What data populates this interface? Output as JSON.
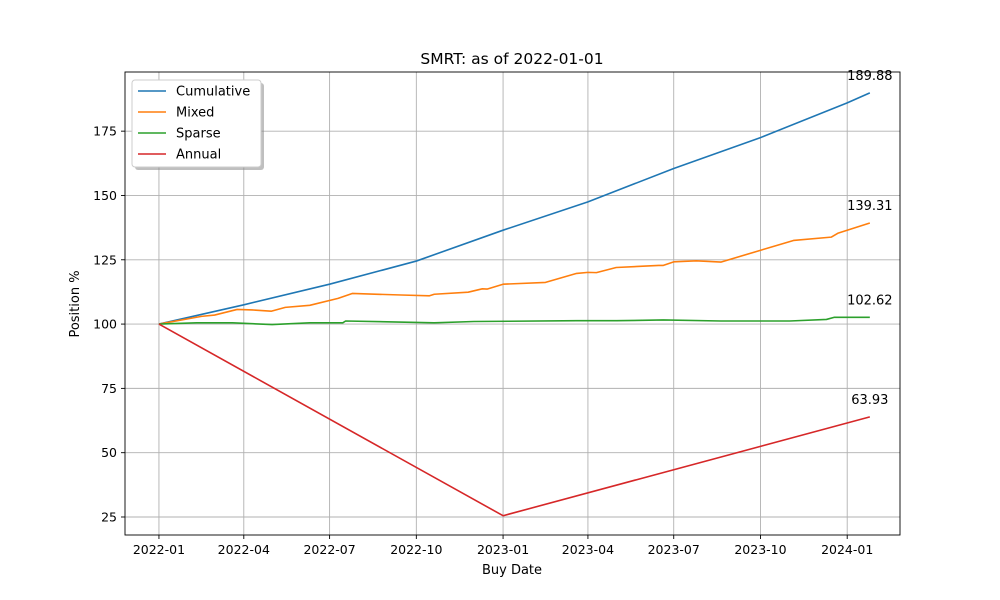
{
  "chart_data": {
    "type": "line",
    "title": "SMRT: as of 2022-01-01",
    "xlabel": "Buy Date",
    "ylabel": "Position %",
    "x_axis_type": "date",
    "xlim": [
      "2021-11-26",
      "2024-02-26"
    ],
    "ylim": [
      18,
      198
    ],
    "x_ticks": [
      "2022-01-01",
      "2022-04-01",
      "2022-07-01",
      "2022-10-01",
      "2023-01-01",
      "2023-04-01",
      "2023-07-01",
      "2023-10-01",
      "2024-01-01"
    ],
    "x_tick_labels": [
      "2022-01",
      "2022-04",
      "2022-07",
      "2022-10",
      "2023-01",
      "2023-04",
      "2023-07",
      "2023-10",
      "2024-01"
    ],
    "y_ticks": [
      25,
      50,
      75,
      100,
      125,
      150,
      175
    ],
    "grid": true,
    "legend_position": "top-left",
    "series": [
      {
        "name": "Cumulative",
        "color": "#1f77b4",
        "end_label": "189.88",
        "points": [
          [
            "2022-01-01",
            100
          ],
          [
            "2022-04-01",
            107.5
          ],
          [
            "2022-07-01",
            115.5
          ],
          [
            "2022-10-01",
            124.5
          ],
          [
            "2023-01-01",
            136.5
          ],
          [
            "2023-04-01",
            147.5
          ],
          [
            "2023-07-01",
            160.5
          ],
          [
            "2023-10-01",
            172.5
          ],
          [
            "2024-01-01",
            186
          ],
          [
            "2024-01-25",
            189.88
          ]
        ]
      },
      {
        "name": "Mixed",
        "color": "#ff7f0e",
        "end_label": "139.31",
        "points": [
          [
            "2022-01-01",
            100
          ],
          [
            "2022-02-15",
            103
          ],
          [
            "2022-03-01",
            103.5
          ],
          [
            "2022-03-25",
            105.7
          ],
          [
            "2022-04-10",
            105.5
          ],
          [
            "2022-04-30",
            105
          ],
          [
            "2022-05-15",
            106.5
          ],
          [
            "2022-06-10",
            107.3
          ],
          [
            "2022-07-10",
            110
          ],
          [
            "2022-07-25",
            111.9
          ],
          [
            "2022-09-15",
            111.3
          ],
          [
            "2022-10-15",
            111
          ],
          [
            "2022-10-20",
            111.6
          ],
          [
            "2022-11-25",
            112.4
          ],
          [
            "2022-12-10",
            113.7
          ],
          [
            "2022-12-15",
            113.6
          ],
          [
            "2023-01-01",
            115.5
          ],
          [
            "2023-02-15",
            116.2
          ],
          [
            "2023-03-20",
            119.7
          ],
          [
            "2023-04-01",
            120.1
          ],
          [
            "2023-04-10",
            120
          ],
          [
            "2023-05-01",
            122
          ],
          [
            "2023-06-15",
            122.8
          ],
          [
            "2023-06-20",
            122.8
          ],
          [
            "2023-07-01",
            124.2
          ],
          [
            "2023-07-25",
            124.6
          ],
          [
            "2023-08-20",
            124.1
          ],
          [
            "2023-11-05",
            132.5
          ],
          [
            "2023-12-15",
            133.8
          ],
          [
            "2023-12-22",
            135.3
          ],
          [
            "2024-01-25",
            139.31
          ]
        ]
      },
      {
        "name": "Sparse",
        "color": "#2ca02c",
        "end_label": "102.62",
        "points": [
          [
            "2022-01-01",
            100
          ],
          [
            "2022-02-10",
            100.5
          ],
          [
            "2022-03-20",
            100.5
          ],
          [
            "2022-05-01",
            99.8
          ],
          [
            "2022-06-10",
            100.5
          ],
          [
            "2022-07-15",
            100.5
          ],
          [
            "2022-07-18",
            101.2
          ],
          [
            "2022-10-20",
            100.5
          ],
          [
            "2022-12-01",
            101.0
          ],
          [
            "2023-03-20",
            101.3
          ],
          [
            "2023-05-01",
            101.3
          ],
          [
            "2023-06-20",
            101.6
          ],
          [
            "2023-08-20",
            101.2
          ],
          [
            "2023-11-01",
            101.2
          ],
          [
            "2023-12-10",
            101.8
          ],
          [
            "2023-12-18",
            102.62
          ],
          [
            "2024-01-25",
            102.62
          ]
        ]
      },
      {
        "name": "Annual",
        "color": "#d62728",
        "end_label": "63.93",
        "points": [
          [
            "2022-01-01",
            100
          ],
          [
            "2023-01-01",
            25.5
          ],
          [
            "2024-01-25",
            63.93
          ]
        ]
      }
    ]
  }
}
